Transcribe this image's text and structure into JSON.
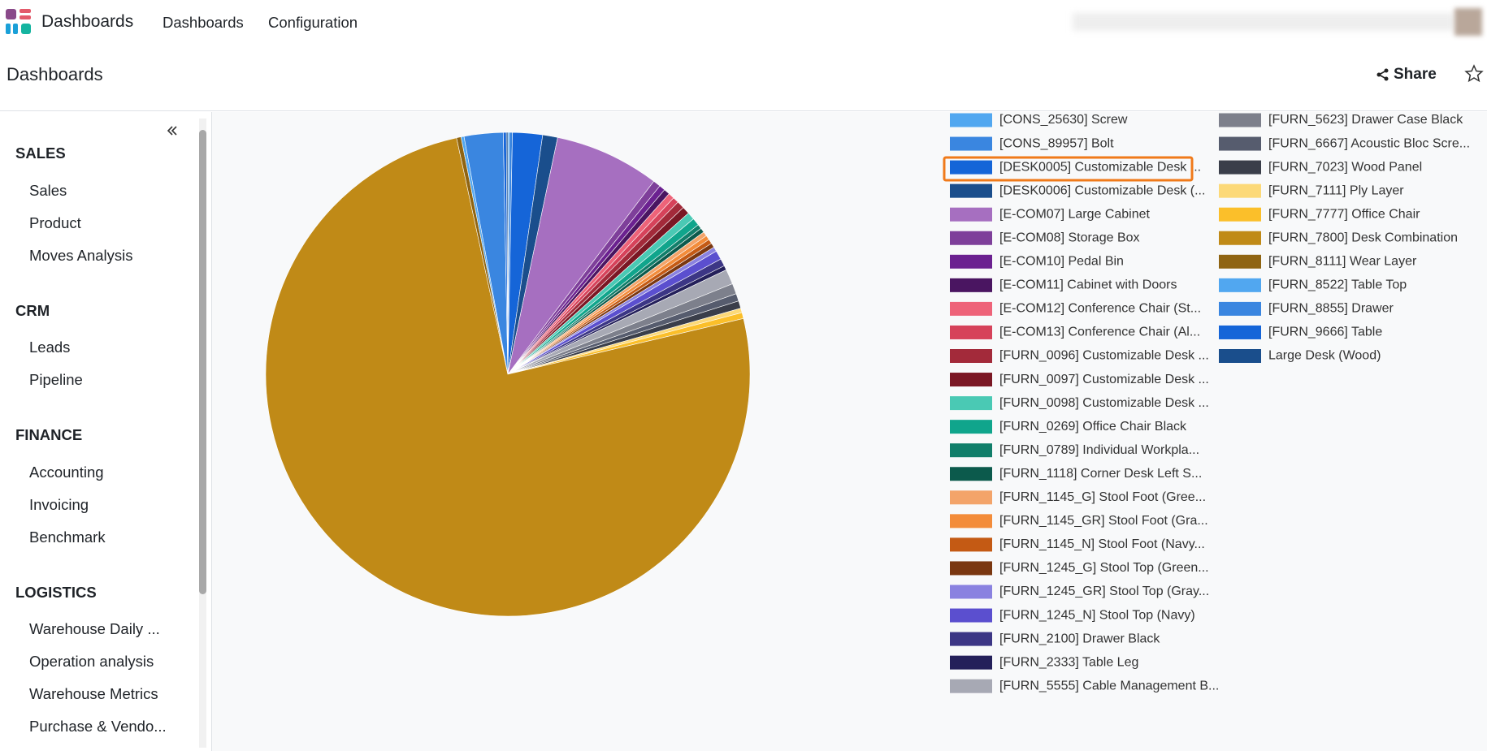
{
  "navbar": {
    "app_name": "Dashboards",
    "menu": [
      "Dashboards",
      "Configuration"
    ]
  },
  "breadcrumb": "Dashboards",
  "share": "Share",
  "sidebar": {
    "sections": [
      {
        "title": "SALES",
        "items": [
          "Sales",
          "Product",
          "Moves Analysis"
        ]
      },
      {
        "title": "CRM",
        "items": [
          "Leads",
          "Pipeline"
        ]
      },
      {
        "title": "FINANCE",
        "items": [
          "Accounting",
          "Invoicing",
          "Benchmark"
        ]
      },
      {
        "title": "LOGISTICS",
        "items": [
          "Warehouse Daily ...",
          "Operation analysis",
          "Warehouse Metrics",
          "Purchase & Vendo..."
        ]
      }
    ]
  },
  "chart_data": {
    "type": "pie",
    "categories": [
      "[CONS_25630] Screw",
      "[CONS_89957] Bolt",
      "[DESK0005] Customizable Desk ...",
      "[DESK0006] Customizable Desk (...",
      "[E-COM07] Large Cabinet",
      "[E-COM08] Storage Box",
      "[E-COM10] Pedal Bin",
      "[E-COM11] Cabinet with Doors",
      "[E-COM12] Conference Chair (St...",
      "[E-COM13] Conference Chair (Al...",
      "[FURN_0096] Customizable Desk ...",
      "[FURN_0097] Customizable Desk ...",
      "[FURN_0098] Customizable Desk ...",
      "[FURN_0269] Office Chair Black",
      "[FURN_0789] Individual Workpla...",
      "[FURN_1118] Corner Desk Left S...",
      "[FURN_1145_G] Stool Foot (Gree...",
      "[FURN_1145_GR] Stool Foot (Gra...",
      "[FURN_1145_N] Stool Foot (Navy...",
      "[FURN_1245_G] Stool Top (Green...",
      "[FURN_1245_GR] Stool Top (Gray...",
      "[FURN_1245_N] Stool Top (Navy)",
      "[FURN_2100] Drawer Black",
      "[FURN_2333] Table Leg",
      "[FURN_5555] Cable Management B...",
      "[FURN_5623] Drawer Case Black",
      "[FURN_6667] Acoustic Bloc Scre...",
      "[FURN_7023] Wood Panel",
      "[FURN_7111] Ply Layer",
      "[FURN_7777] Office Chair",
      "[FURN_7800] Desk Combination",
      "[FURN_8111] Wear Layer",
      "[FURN_8522] Table Top",
      "[FURN_8855] Drawer",
      "[FURN_9666] Table",
      "Large Desk (Wood)"
    ],
    "values": [
      0.1,
      0.2,
      2,
      1,
      7,
      0.5,
      0.4,
      0.4,
      0.4,
      0.4,
      0.5,
      0.5,
      0.5,
      0.5,
      0.3,
      0.3,
      0.3,
      0.3,
      0.3,
      0.3,
      0.3,
      0.6,
      0.5,
      0.3,
      1,
      0.7,
      0.5,
      0.5,
      0.3,
      0.4,
      75.3,
      0.3,
      0.2,
      2.6,
      0.2,
      0.1
    ],
    "colors": [
      "#51a7f0",
      "#3a86e0",
      "#1565d8",
      "#1a4e8c",
      "#a66fc0",
      "#7e3f9a",
      "#6b2190",
      "#4a1561",
      "#ee6379",
      "#d6425a",
      "#a32a3a",
      "#7a1724",
      "#4ac9b4",
      "#10a58c",
      "#117e6a",
      "#0c5a4c",
      "#f3a46a",
      "#f38c3a",
      "#c45a14",
      "#7a3710",
      "#8a82e0",
      "#5b4fcf",
      "#3c3685",
      "#24205a",
      "#a7a9b4",
      "#7d808c",
      "#565c6e",
      "#3a3e4a",
      "#fcd978",
      "#fbbf2a",
      "#c08a17",
      "#8f6412",
      "#51a7f0",
      "#3a86e0",
      "#1565d8",
      "#1a4e8c"
    ]
  }
}
